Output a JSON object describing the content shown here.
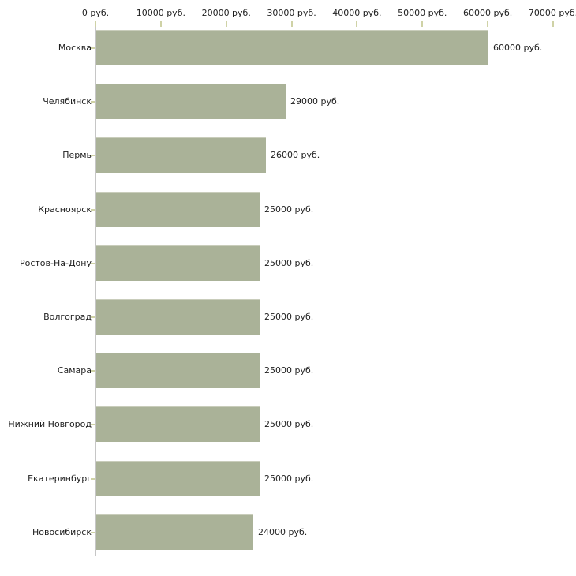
{
  "chart_data": {
    "type": "bar",
    "orientation": "horizontal",
    "title": "",
    "xlabel": "",
    "ylabel": "",
    "unit": "руб.",
    "grid": false,
    "legend": false,
    "xlim": [
      0,
      70000
    ],
    "x_ticks": [
      0,
      10000,
      20000,
      30000,
      40000,
      50000,
      60000,
      70000
    ],
    "x_tick_labels": [
      "0 руб.",
      "10000 руб.",
      "20000 руб.",
      "30000 руб.",
      "40000 руб.",
      "50000 руб.",
      "60000 руб.",
      "70000 руб."
    ],
    "categories": [
      "Москва",
      "Челябинск",
      "Пермь",
      "Красноярск",
      "Ростов-На-Дону",
      "Волгоград",
      "Самара",
      "Нижний Новгород",
      "Екатеринбург",
      "Новосибирск"
    ],
    "values": [
      60000,
      29000,
      26000,
      25000,
      25000,
      25000,
      25000,
      25000,
      25000,
      24000
    ],
    "value_labels": [
      "60000 руб.",
      "29000 руб.",
      "26000 руб.",
      "25000 руб.",
      "25000 руб.",
      "25000 руб.",
      "25000 руб.",
      "25000 руб.",
      "25000 руб.",
      "24000 руб."
    ],
    "colors": {
      "bar": "#aab298",
      "bar_top_edge": "#c9cdbb",
      "axis": "#c6c6c6",
      "tick": "#cfd2a6",
      "text": "#1f1f1f",
      "background": "#ffffff"
    }
  }
}
